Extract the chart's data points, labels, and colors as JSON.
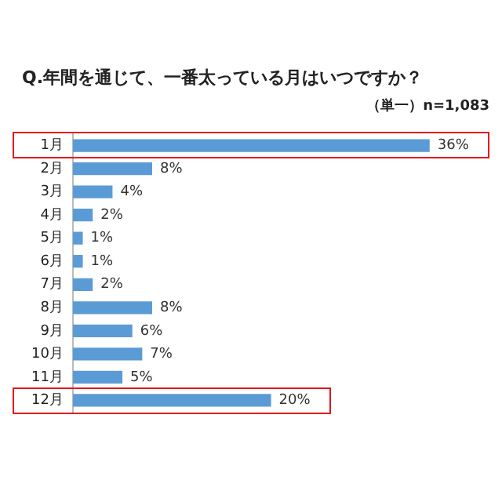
{
  "chart_data": {
    "type": "bar",
    "orientation": "horizontal",
    "title": "Q.年間を通じて、一番太っている月はいつですか？",
    "subtitle": "（単一）n=1,083",
    "categories": [
      "1月",
      "2月",
      "3月",
      "4月",
      "5月",
      "6月",
      "7月",
      "8月",
      "9月",
      "10月",
      "11月",
      "12月"
    ],
    "values": [
      36,
      8,
      4,
      2,
      1,
      1,
      2,
      8,
      6,
      7,
      5,
      20
    ],
    "value_labels": [
      "36%",
      "8%",
      "4%",
      "2%",
      "1%",
      "1%",
      "2%",
      "8%",
      "6%",
      "7%",
      "5%",
      "20%"
    ],
    "color": "#5b9bd5",
    "grid": false,
    "legend": false
  }
}
